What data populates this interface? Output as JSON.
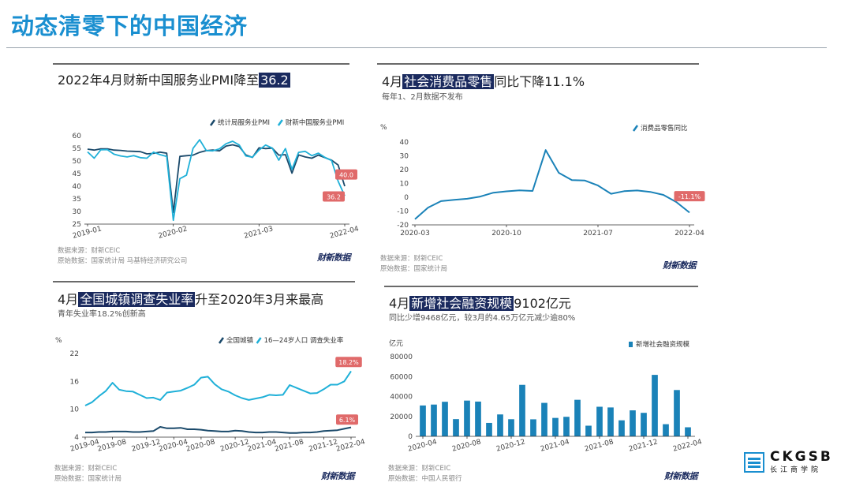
{
  "page": {
    "title": "动态清零下的中国经济",
    "logo_name": "CKGSB",
    "logo_sub": "长江商学院"
  },
  "colors": {
    "accent": "#1a8fd0",
    "navy": "#1a2a5e",
    "dark_teal": "#1b4a6b",
    "light_blue": "#1fb0d8",
    "bar_blue": "#1a82b8",
    "red_label": "#e06a6a"
  },
  "panels": {
    "pmi": {
      "title_pre": "2022年4月财新中国服务业PMI降至",
      "title_hl": "36.2",
      "legend": [
        "统计局服务业PMI",
        "财新中国服务业PMI"
      ],
      "source": "数据来源：财新CEIC",
      "origin": "原始数据：国家统计局 马基特经济研究公司",
      "brand": "财新数据"
    },
    "retail": {
      "title_pre": "4月",
      "title_hl": "社会消费品零售",
      "title_post": "同比下降11.1%",
      "subtitle": "每年1、2月数据不发布",
      "unit": "%",
      "legend": [
        "消费品零售同比"
      ],
      "source": "数据来源：财新CEIC",
      "origin": "原始数据：国家统计局",
      "brand": "财新数据"
    },
    "unemp": {
      "title_pre": "4月",
      "title_hl": "全国城镇调查失业率",
      "title_post": "升至2020年3月来最高",
      "subtitle": "青年失业率18.2%创新高",
      "unit": "%",
      "legend": [
        "全国城镇",
        "16—24岁人口 调查失业率"
      ],
      "source": "数据来源：财新CEIC",
      "origin": "原始数据：国家统计局",
      "brand": "财新数据"
    },
    "tsf": {
      "title_pre": "4月",
      "title_hl": "新增社会融资规模",
      "title_post": "9102亿元",
      "subtitle": "同比少增9468亿元，较3月的4.65万亿元减少逾80%",
      "unit": "亿元",
      "legend": [
        "新增社会融资规模"
      ],
      "source": "数据来源：财新CEIC",
      "origin": "原始数据：中国人民银行",
      "brand": "财新数据"
    }
  },
  "chart_data": [
    {
      "id": "pmi",
      "type": "line",
      "title": "2022年4月财新中国服务业PMI降至36.2",
      "x_ticks": [
        "2019-01",
        "2020-02",
        "2021-03",
        "2022-04"
      ],
      "x_tick_index": [
        0,
        13,
        26,
        39
      ],
      "ylim": [
        25,
        60
      ],
      "y_ticks": [
        25,
        30,
        35,
        40,
        45,
        50,
        55,
        60
      ],
      "series": [
        {
          "name": "统计局服务业PMI",
          "color": "#1b4a6b",
          "end_label": "40.0",
          "values": [
            54.7,
            54.3,
            54.8,
            54.8,
            54.3,
            54.2,
            53.9,
            53.8,
            53.7,
            52.8,
            53.0,
            53.5,
            53.1,
            29.6,
            51.8,
            52.1,
            52.3,
            53.4,
            54.1,
            54.3,
            54.0,
            55.9,
            56.4,
            55.7,
            52.4,
            51.4,
            55.2,
            54.9,
            55.1,
            52.3,
            52.5,
            45.2,
            52.4,
            51.6,
            51.1,
            52.3,
            51.3,
            50.3,
            48.4,
            40.0
          ]
        },
        {
          "name": "财新中国服务业PMI",
          "color": "#1fb0d8",
          "end_label": "36.2",
          "values": [
            53.6,
            51.1,
            54.4,
            54.5,
            52.7,
            52.0,
            51.6,
            52.1,
            51.3,
            51.1,
            53.5,
            52.5,
            51.8,
            26.5,
            43.0,
            44.4,
            55.0,
            58.4,
            54.1,
            54.0,
            54.8,
            56.8,
            57.8,
            56.3,
            52.0,
            51.5,
            54.3,
            56.3,
            55.1,
            50.3,
            54.9,
            46.7,
            53.4,
            53.8,
            52.1,
            53.1,
            51.4,
            50.2,
            42.0,
            36.2
          ]
        }
      ]
    },
    {
      "id": "retail",
      "type": "line",
      "title": "4月社会消费品零售同比下降11.1%",
      "x_ticks": [
        "2020-03",
        "2020-10",
        "2021-07",
        "2022-04"
      ],
      "x_tick_index": [
        0,
        7,
        14,
        21
      ],
      "ylim": [
        -20,
        40
      ],
      "y_ticks": [
        -20,
        -10,
        0,
        10,
        20,
        30,
        40
      ],
      "series": [
        {
          "name": "消费品零售同比",
          "color": "#1a82b8",
          "end_label": "-11.1%",
          "values": [
            -15.8,
            -7.5,
            -2.8,
            -1.8,
            -1.1,
            0.5,
            3.3,
            4.3,
            5.0,
            4.6,
            34.2,
            17.7,
            12.4,
            12.1,
            8.5,
            2.5,
            4.4,
            4.9,
            3.9,
            1.7,
            -3.5,
            -11.1
          ]
        }
      ]
    },
    {
      "id": "unemp",
      "type": "line",
      "title": "4月全国城镇调查失业率升至2020年3月来最高",
      "x_ticks": [
        "2019-04",
        "2019-08",
        "2019-12",
        "2020-04",
        "2020-08",
        "2020-12",
        "2021-04",
        "2021-08",
        "2021-12",
        "2022-04"
      ],
      "ylim": [
        4,
        22
      ],
      "y_ticks": [
        4,
        10,
        16,
        22
      ],
      "series": [
        {
          "name": "全国城镇",
          "color": "#1b4a6b",
          "end_label": "6.1%",
          "values": [
            5.0,
            5.0,
            5.1,
            5.1,
            5.2,
            5.2,
            5.2,
            5.1,
            5.1,
            5.2,
            5.3,
            6.2,
            5.9,
            5.9,
            6.0,
            5.7,
            5.7,
            5.6,
            5.4,
            5.3,
            5.2,
            5.2,
            5.4,
            5.3,
            5.1,
            5.0,
            5.0,
            5.1,
            5.1,
            5.0,
            4.9,
            4.9,
            5.0,
            5.0,
            5.1,
            5.3,
            5.4,
            5.5,
            5.8,
            6.1
          ]
        },
        {
          "name": "16—24岁人口 调查失业率",
          "color": "#1fb0d8",
          "end_label": "18.2%",
          "values": [
            10.8,
            11.5,
            12.8,
            13.9,
            15.7,
            14.2,
            13.9,
            13.8,
            13.1,
            12.4,
            12.5,
            12.0,
            13.6,
            13.8,
            14.0,
            14.6,
            15.3,
            16.8,
            17.0,
            15.4,
            14.3,
            13.8,
            13.0,
            12.4,
            12.0,
            12.3,
            12.6,
            13.1,
            13.0,
            13.1,
            15.2,
            14.6,
            14.0,
            13.4,
            13.5,
            14.3,
            15.3,
            15.3,
            16.0,
            18.2
          ]
        }
      ]
    },
    {
      "id": "tsf",
      "type": "bar",
      "title": "4月新增社会融资规模9102亿元",
      "x_ticks": [
        "2020-04",
        "2020-08",
        "2020-12",
        "2021-04",
        "2021-08",
        "2021-12",
        "2022-04"
      ],
      "x_tick_index": [
        0,
        4,
        8,
        12,
        16,
        20,
        24
      ],
      "ylim": [
        0,
        80000
      ],
      "y_ticks": [
        0,
        20000,
        40000,
        60000,
        80000
      ],
      "series": [
        {
          "name": "新增社会融资规模",
          "color": "#1a82b8",
          "values": [
            31000,
            31900,
            34700,
            17300,
            35900,
            34900,
            13500,
            22000,
            17200,
            51700,
            17100,
            33600,
            18500,
            19600,
            36700,
            10700,
            29700,
            29000,
            16100,
            26100,
            23600,
            61700,
            12200,
            46500,
            9102
          ]
        }
      ]
    }
  ]
}
